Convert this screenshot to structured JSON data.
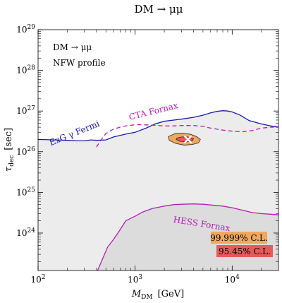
{
  "chart_data": {
    "type": "line",
    "title": "DM → μμ",
    "xlabel": "M_DM [GeV]",
    "xlabel_main": "M",
    "xlabel_sub": "DM",
    "xlabel_unit": "[GeV]",
    "ylabel": "τ_dec [sec]",
    "ylabel_main": "τ",
    "ylabel_sub": "dec",
    "ylabel_unit": "[sec]",
    "xscale": "log",
    "yscale": "log",
    "xlim": [
      100,
      30000
    ],
    "ylim": [
      1.2e+23,
      1e+29
    ],
    "x_ticks": [
      {
        "value": 100,
        "mantissa": "10",
        "exp": "2"
      },
      {
        "value": 1000,
        "mantissa": "10",
        "exp": "3"
      },
      {
        "value": 10000,
        "mantissa": "10",
        "exp": "4"
      }
    ],
    "y_ticks": [
      {
        "value": 1e+24,
        "mantissa": "10",
        "exp": "24"
      },
      {
        "value": 1e+25,
        "mantissa": "10",
        "exp": "25"
      },
      {
        "value": 1e+26,
        "mantissa": "10",
        "exp": "26"
      },
      {
        "value": 1e+27,
        "mantissa": "10",
        "exp": "27"
      },
      {
        "value": 1e+28,
        "mantissa": "10",
        "exp": "28"
      },
      {
        "value": 1e+29,
        "mantissa": "10",
        "exp": "29"
      }
    ],
    "annotations": {
      "channel": "DM → μμ",
      "profile": "NFW profile"
    },
    "series": [
      {
        "name": "ExG γ Fermi",
        "style": "solid",
        "color": "#1a1aa8",
        "fill": "#ececec",
        "x": [
          100,
          150,
          200,
          250,
          300,
          350,
          400,
          500,
          600,
          800,
          1000,
          1300,
          1600,
          2000,
          2500,
          3000,
          4000,
          5000,
          6000,
          7000,
          8000,
          9000,
          10000,
          12000,
          15000,
          20000,
          25000,
          30000
        ],
        "y": [
          2e+26,
          1.95e+26,
          1.9e+26,
          1.85e+26,
          1.85e+26,
          1.95e+26,
          1.9e+26,
          1.95e+26,
          2.3e+26,
          2.7e+26,
          3e+26,
          3.8e+26,
          4.8e+26,
          5.6e+26,
          6e+26,
          6.3e+26,
          7e+26,
          7.9e+26,
          9e+26,
          9.8e+26,
          1.02e+27,
          1e+27,
          9.5e+26,
          8e+26,
          5.8e+26,
          4.8e+26,
          4.3e+26,
          4e+26
        ]
      },
      {
        "name": "CTA Fornax",
        "style": "dashed",
        "color": "#b21fb2",
        "x": [
          400,
          450,
          500,
          600,
          700,
          800,
          1000,
          1200,
          1500,
          2000,
          2500,
          3000,
          4000,
          5000,
          6000,
          8000,
          10000,
          13000,
          16000,
          20000,
          25000,
          30000
        ],
        "y": [
          1.3e+26,
          2e+26,
          2.8e+26,
          3.6e+26,
          4e+26,
          4.3e+26,
          4.6e+26,
          4.6e+26,
          4.5e+26,
          4.3e+26,
          4.3e+26,
          4.4e+26,
          4.4e+26,
          4.2e+26,
          3.8e+26,
          3.4e+26,
          3.2e+26,
          3.1e+26,
          3.3e+26,
          3.8e+26,
          4e+26,
          4.1e+26
        ]
      },
      {
        "name": "HESS Fornax",
        "style": "solid",
        "color": "#b21fb2",
        "fill": "#dcdcdc",
        "x": [
          410,
          450,
          520,
          600,
          700,
          800,
          1000,
          1200,
          1500,
          2000,
          2500,
          3000,
          4000,
          5000,
          6000,
          8000,
          10000,
          13000,
          16000,
          20000,
          25000,
          30000
        ],
        "y": [
          1.2e+23,
          2e+23,
          4.5e+23,
          7e+23,
          1.2e+24,
          2e+24,
          2.6e+24,
          3.3e+24,
          4e+24,
          4.6e+24,
          5e+24,
          5.1e+24,
          5.2e+24,
          5.1e+24,
          4.9e+24,
          4.6e+24,
          4.2e+24,
          3.6e+24,
          3.2e+24,
          3e+24,
          2.9e+24,
          2.8e+24
        ]
      }
    ],
    "best_fit_regions": [
      {
        "name": "99.999% C.L.",
        "color": "#f0a860",
        "x": [
          2200,
          2600,
          3100,
          3700,
          4300,
          4700,
          4500,
          3900,
          3200,
          2600,
          2250,
          2200
        ],
        "y": [
          2.35e+26,
          2.8e+26,
          2.85e+26,
          2.7e+26,
          2.35e+26,
          2e+26,
          1.65e+26,
          1.5e+26,
          1.45e+26,
          1.6e+26,
          1.9e+26,
          2.35e+26
        ]
      },
      {
        "name": "95.45% C.L.",
        "color": "#e85a5a",
        "x": [
          2700,
          3000,
          3500,
          4000,
          3900,
          3400,
          2900,
          2650,
          2700
        ],
        "y": [
          2.15e+26,
          2.3e+26,
          2.3e+26,
          2.1e+26,
          1.85e+26,
          1.75e+26,
          1.8e+26,
          2e+26,
          2.15e+26
        ]
      }
    ],
    "best_fit_point": {
      "x": 3500,
      "y": 2e+26,
      "marker": "x"
    },
    "series_labels": [
      {
        "text": "ExG γ Fermi",
        "x": 135,
        "y": 1.4e+26,
        "rotation": -22,
        "color": "#1a1aa8"
      },
      {
        "text": "CTA Fornax",
        "x": 880,
        "y": 6e+26,
        "rotation": -14,
        "color": "#b21fb2"
      },
      {
        "text": "HESS Fornax",
        "x": 2450,
        "y": 1.85e+24,
        "rotation": 9,
        "color": "#b21fb2"
      }
    ],
    "legend": {
      "position": "bottom-right",
      "entries": [
        {
          "label": "99.999% C.L.",
          "color": "#f0a860"
        },
        {
          "label": "95.45% C.L.",
          "color": "#e85a5a"
        }
      ]
    },
    "grid": false
  }
}
